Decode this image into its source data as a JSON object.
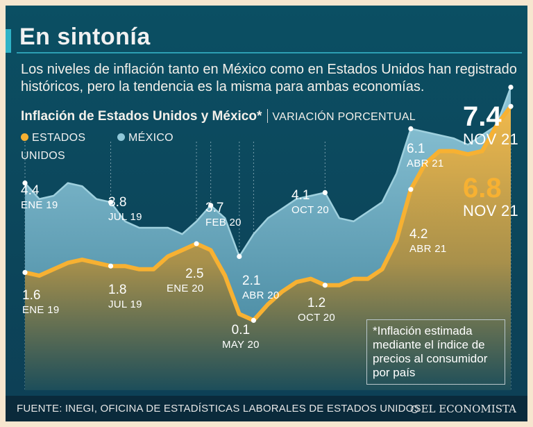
{
  "header": {
    "title": "En sintonía",
    "subtitle": "Los niveles de inflación tanto en México como en Estados Unidos han registrado históricos, pero la tendencia es la misma para ambas economías."
  },
  "chart_data": {
    "type": "area",
    "title": "Inflación de Estados Unidos y México*",
    "unit_label": "VARIACIÓN PORCENTUAL",
    "ylim": [
      0,
      8
    ],
    "grid": false,
    "legend_position": "top-left",
    "colors": {
      "usa": "#f7b132",
      "mexico": "#8fc7d8"
    },
    "series": [
      {
        "name": "ESTADOS UNIDOS",
        "key": "usa",
        "values": [
          1.6,
          1.5,
          1.7,
          1.9,
          2.0,
          1.9,
          1.8,
          1.8,
          1.7,
          1.7,
          2.1,
          2.3,
          2.5,
          2.3,
          1.5,
          0.3,
          0.1,
          0.6,
          1.0,
          1.3,
          1.4,
          1.2,
          1.2,
          1.4,
          1.4,
          1.7,
          2.6,
          4.2,
          5.0,
          5.4,
          5.4,
          5.3,
          5.4,
          6.2,
          6.8
        ],
        "labels": [
          {
            "index": 0,
            "value": "1.6",
            "date": "ENE 19"
          },
          {
            "index": 6,
            "value": "1.8",
            "date": "JUL 19"
          },
          {
            "index": 12,
            "value": "2.5",
            "date": "ENE 20"
          },
          {
            "index": 16,
            "value": "0.1",
            "date": "MAY 20"
          },
          {
            "index": 21,
            "value": "1.2",
            "date": "OCT 20"
          },
          {
            "index": 27,
            "value": "4.2",
            "date": "ABR 21"
          },
          {
            "index": 34,
            "value": "6.8",
            "date": "NOV 21"
          }
        ]
      },
      {
        "name": "MÉXICO",
        "key": "mexico",
        "values": [
          4.4,
          3.9,
          4.0,
          4.4,
          4.3,
          3.9,
          3.8,
          3.2,
          3.0,
          3.0,
          3.0,
          2.8,
          3.2,
          3.7,
          3.3,
          2.1,
          2.8,
          3.3,
          3.6,
          3.9,
          4.0,
          4.1,
          3.3,
          3.2,
          3.5,
          3.8,
          4.7,
          6.1,
          6.0,
          5.9,
          5.8,
          5.6,
          5.9,
          6.2,
          7.4
        ],
        "labels": [
          {
            "index": 0,
            "value": "4.4",
            "date": "ENE 19"
          },
          {
            "index": 6,
            "value": "3.8",
            "date": "JUL 19"
          },
          {
            "index": 13,
            "value": "3.7",
            "date": "FEB 20"
          },
          {
            "index": 15,
            "value": "2.1",
            "date": "ABR 20"
          },
          {
            "index": 21,
            "value": "4.1",
            "date": "OCT 20"
          },
          {
            "index": 27,
            "value": "6.1",
            "date": "ABR 21"
          },
          {
            "index": 34,
            "value": "7.4",
            "date": "NOV 21"
          }
        ]
      }
    ],
    "highlight_months": [
      0,
      6,
      12,
      13,
      15,
      16,
      21,
      27,
      34
    ],
    "note": "*Inflación estimada mediante el índice de precios al consumidor por país"
  },
  "footer": {
    "source": "FUENTE: INEGI, OFICINA DE ESTADÍSTICAS LABORALES DE ESTADOS UNIDOS",
    "logo": "EL ECONOMISTA"
  }
}
